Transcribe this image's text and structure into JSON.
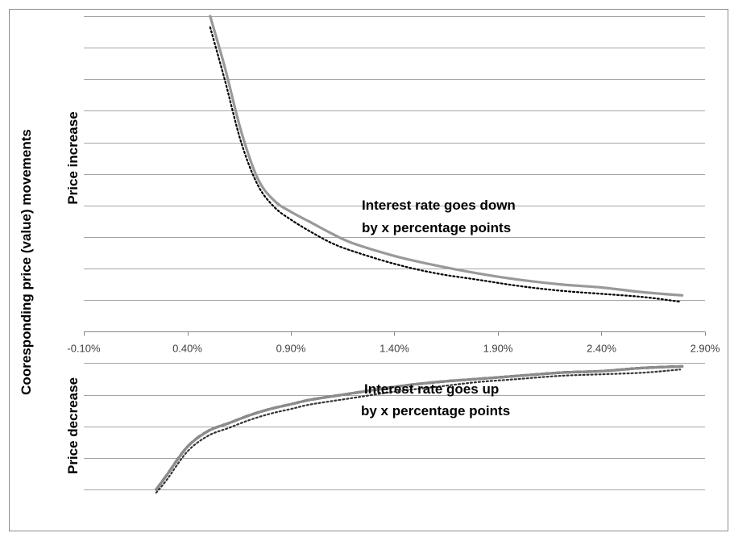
{
  "chart_data": {
    "type": "line",
    "title": "",
    "xlabel": "",
    "ylabel": "Cooresponding price (value) movements",
    "ylabel_upper": "Price  increase",
    "ylabel_lower": "Price  decrease",
    "xlim": [
      -0.001,
      0.029
    ],
    "ylim": [
      -10,
      20
    ],
    "x_ticks": [
      -0.001,
      0.004,
      0.009,
      0.014,
      0.019,
      0.024,
      0.029
    ],
    "x_tick_labels": [
      "-0.10%",
      "0.40%",
      "0.90%",
      "1.40%",
      "1.90%",
      "2.40%",
      "2.90%"
    ],
    "y_gridlines": [
      -10,
      -8,
      -6,
      -4,
      -2,
      0,
      2,
      4,
      6,
      8,
      10,
      12,
      14,
      16,
      18,
      20
    ],
    "grid": true,
    "legend": "none",
    "annotations": [
      {
        "line1": "Interest rate goes down",
        "line2": "by x percentage points"
      },
      {
        "line1": "Interest rate goes up",
        "line2": "by x percentage points"
      }
    ],
    "series": [
      {
        "style": "solid",
        "color": "#999999",
        "x": [
          0.0051,
          0.0058,
          0.0066,
          0.0074,
          0.0082,
          0.009,
          0.01,
          0.011,
          0.012,
          0.014,
          0.016,
          0.018,
          0.02,
          0.022,
          0.024,
          0.026,
          0.0279
        ],
        "y": [
          20.0,
          16.8,
          12.7,
          9.7,
          8.3,
          7.6,
          6.9,
          6.2,
          5.6,
          4.8,
          4.2,
          3.7,
          3.3,
          3.0,
          2.8,
          2.5,
          2.3
        ]
      },
      {
        "style": "dotted",
        "color": "#000000",
        "x": [
          0.0051,
          0.0058,
          0.0066,
          0.0074,
          0.0082,
          0.009,
          0.01,
          0.011,
          0.012,
          0.014,
          0.016,
          0.018,
          0.02,
          0.022,
          0.024,
          0.026,
          0.0278
        ],
        "y": [
          19.3,
          16.0,
          12.0,
          9.3,
          7.9,
          7.1,
          6.3,
          5.6,
          5.1,
          4.3,
          3.7,
          3.3,
          2.9,
          2.6,
          2.4,
          2.2,
          1.9
        ]
      },
      {
        "style": "dashed",
        "color": "#000000",
        "x": [
          0.0025,
          0.003,
          0.004,
          0.005,
          0.006,
          0.007,
          0.008,
          0.009,
          0.01,
          0.012,
          0.014,
          0.016,
          0.018,
          0.02,
          0.022,
          0.024,
          0.026,
          0.0279
        ],
        "y": [
          -10.0,
          -9.1,
          -7.3,
          -6.3,
          -5.8,
          -5.3,
          -4.9,
          -4.6,
          -4.3,
          -3.9,
          -3.5,
          -3.2,
          -3.0,
          -2.8,
          -2.6,
          -2.5,
          -2.3,
          -2.2
        ]
      },
      {
        "style": "solid",
        "color": "#8c8c8c",
        "x": [
          0.0025,
          0.003,
          0.004,
          0.005,
          0.006,
          0.007,
          0.008,
          0.009,
          0.01,
          0.012,
          0.014,
          0.016,
          0.018,
          0.02,
          0.022,
          0.024,
          0.026,
          0.0279
        ],
        "y": [
          -10.0,
          -9.1,
          -7.3,
          -6.3,
          -5.8,
          -5.3,
          -4.9,
          -4.6,
          -4.3,
          -3.9,
          -3.5,
          -3.2,
          -3.0,
          -2.8,
          -2.6,
          -2.5,
          -2.3,
          -2.2
        ]
      },
      {
        "style": "dotted",
        "color": "#333333",
        "x": [
          0.0025,
          0.003,
          0.004,
          0.005,
          0.006,
          0.007,
          0.008,
          0.009,
          0.01,
          0.012,
          0.014,
          0.016,
          0.018,
          0.02,
          0.022,
          0.024,
          0.026,
          0.0278
        ],
        "y": [
          -10.2,
          -9.4,
          -7.6,
          -6.6,
          -6.1,
          -5.6,
          -5.2,
          -4.9,
          -4.6,
          -4.2,
          -3.8,
          -3.5,
          -3.2,
          -3.0,
          -2.8,
          -2.7,
          -2.6,
          -2.4
        ]
      }
    ]
  }
}
